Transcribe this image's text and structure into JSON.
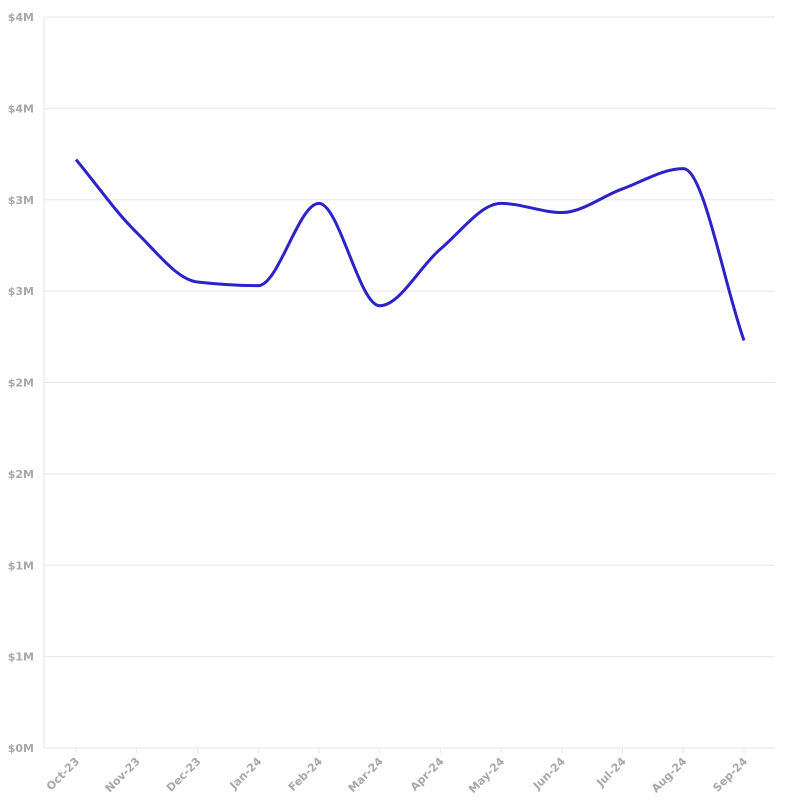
{
  "chart_data": {
    "type": "line",
    "categories": [
      "Oct-23",
      "Nov-23",
      "Dec-23",
      "Jan-24",
      "Feb-24",
      "Mar-24",
      "Apr-24",
      "May-24",
      "Jun-24",
      "Jul-24",
      "Aug-24",
      "Sep-24"
    ],
    "series": [
      {
        "color": "#2b22c9",
        "values": [
          3220000,
          2820000,
          2550000,
          2530000,
          2980000,
          2420000,
          2730000,
          2980000,
          2930000,
          3060000,
          3170000,
          2230000
        ]
      }
    ],
    "ylim": [
      0,
      4000000
    ],
    "yticks": [
      {
        "value": 0,
        "label": "$0M"
      },
      {
        "value": 500000,
        "label": "$1M"
      },
      {
        "value": 1000000,
        "label": "$1M"
      },
      {
        "value": 1500000,
        "label": "$2M"
      },
      {
        "value": 2000000,
        "label": "$2M"
      },
      {
        "value": 2500000,
        "label": "$3M"
      },
      {
        "value": 3000000,
        "label": "$3M"
      },
      {
        "value": 3500000,
        "label": "$4M"
      },
      {
        "value": 4000000,
        "label": "$4M"
      }
    ],
    "grid": true
  }
}
